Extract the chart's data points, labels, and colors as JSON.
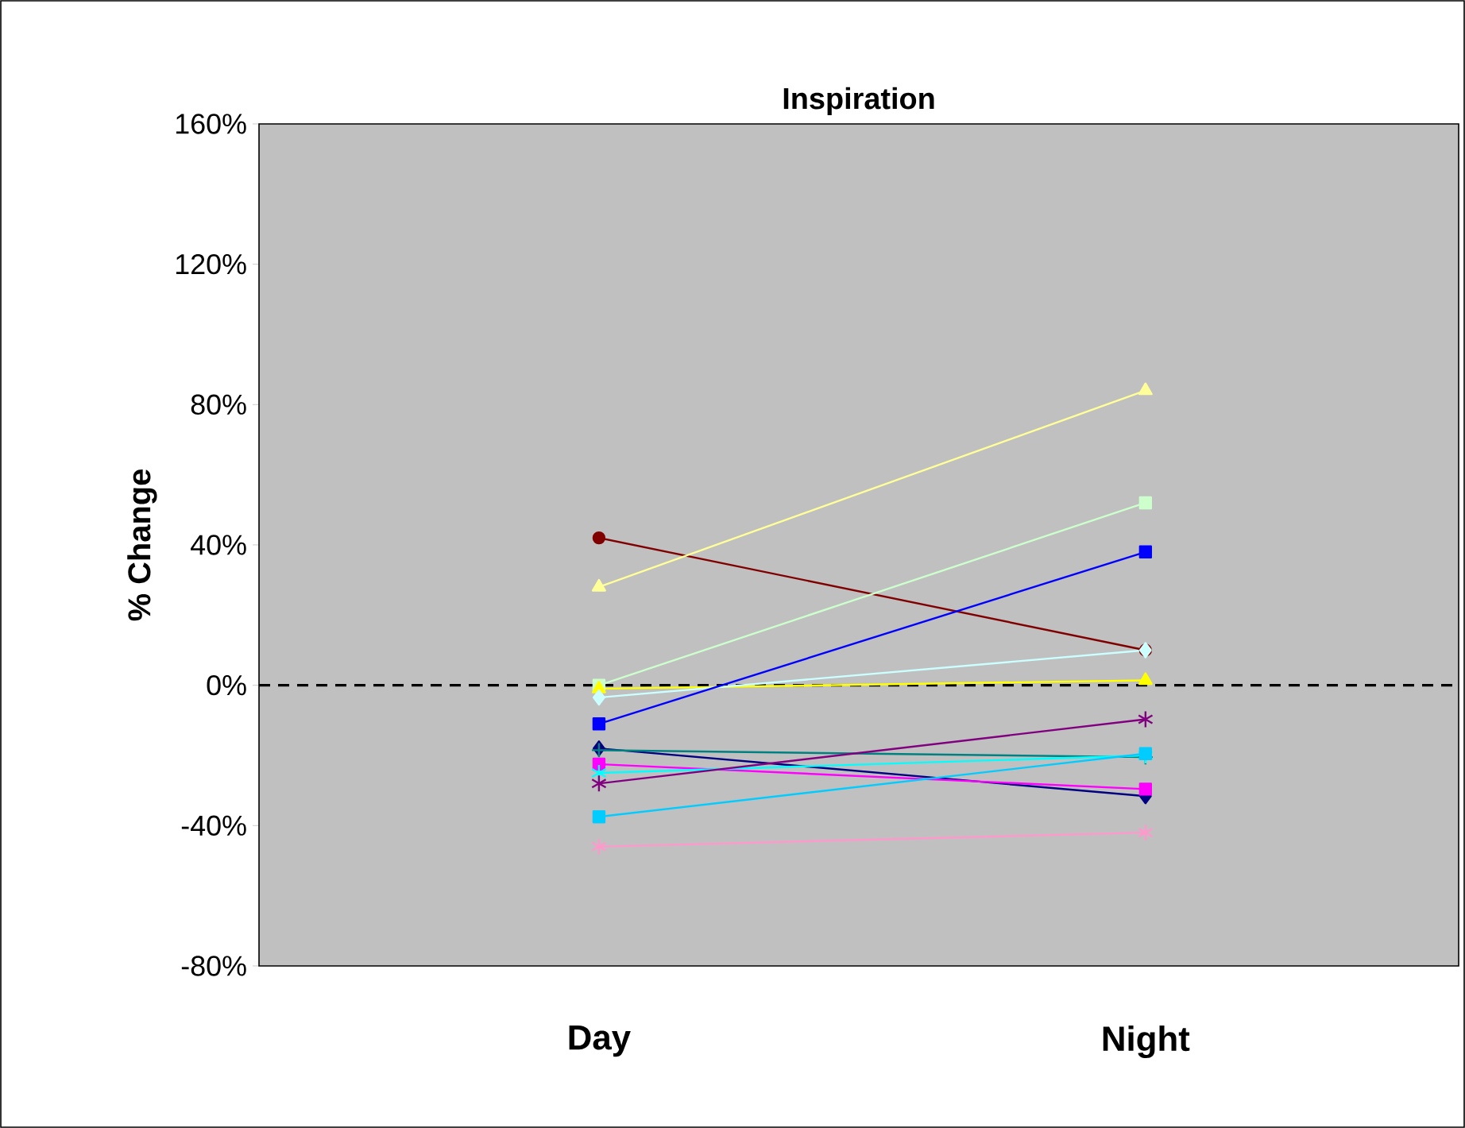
{
  "chart_data": {
    "type": "line",
    "title": "Inspiration",
    "ylabel": "% Change",
    "categories": [
      "Day",
      "Night"
    ],
    "ylim": [
      -80,
      160
    ],
    "yticks": [
      {
        "value": -80,
        "label": "-80%"
      },
      {
        "value": -40,
        "label": "-40%"
      },
      {
        "value": 0,
        "label": "0%"
      },
      {
        "value": 40,
        "label": "40%"
      },
      {
        "value": 80,
        "label": "80%"
      },
      {
        "value": 120,
        "label": "120%"
      },
      {
        "value": 160,
        "label": "160%"
      }
    ],
    "series": [
      {
        "color": "#800000",
        "marker": "circle",
        "values": [
          42,
          10
        ]
      },
      {
        "color": "#ffff99",
        "marker": "triangle",
        "values": [
          28,
          84
        ]
      },
      {
        "color": "#ccffcc",
        "marker": "square",
        "values": [
          0,
          52
        ]
      },
      {
        "color": "#ffff00",
        "marker": "triangle",
        "values": [
          -1,
          1.4
        ]
      },
      {
        "color": "#ccffff",
        "marker": "diamond",
        "values": [
          -3.5,
          10
        ]
      },
      {
        "color": "#0000ff",
        "marker": "square",
        "values": [
          -11,
          38
        ]
      },
      {
        "color": "#000080",
        "marker": "diamond",
        "values": [
          -18,
          -31.6
        ]
      },
      {
        "color": "#008080",
        "marker": "plus",
        "values": [
          -18.5,
          -20.5
        ]
      },
      {
        "color": "#ff00ff",
        "marker": "square",
        "values": [
          -22.5,
          -29.6
        ]
      },
      {
        "color": "#00ffff",
        "marker": "cross",
        "values": [
          -25,
          -20
        ]
      },
      {
        "color": "#800080",
        "marker": "cross",
        "values": [
          -28,
          -9.7
        ]
      },
      {
        "color": "#00ccff",
        "marker": "square",
        "values": [
          -37.5,
          -19.5
        ]
      },
      {
        "color": "#ff99cc",
        "marker": "cross",
        "values": [
          -46,
          -42
        ]
      }
    ],
    "ref_lines": [
      {
        "axis": "y",
        "value": 0,
        "color": "#000000",
        "line_style": "dashed"
      }
    ],
    "tick_labels": true
  }
}
